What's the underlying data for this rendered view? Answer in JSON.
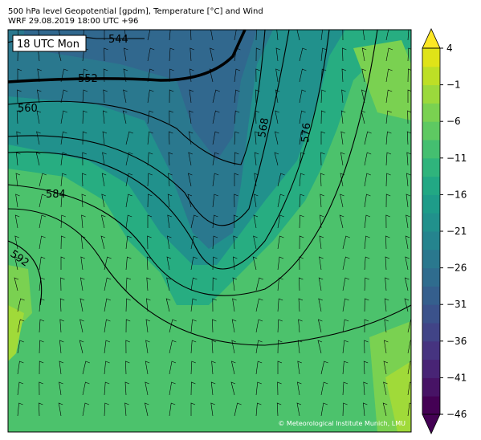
{
  "header": {
    "title": "500 hPa level Geopotential [gpdm], Temperature [°C] and Wind",
    "subtitle": "WRF 29.08.2019 18:00 UTC +96"
  },
  "map": {
    "time_label": "18 UTC Mon",
    "credit": "© Meteorological Institute Munich, LMU",
    "contour_labels": [
      "544",
      "552",
      "560",
      "568",
      "576",
      "584",
      "592"
    ]
  },
  "colorbar": {
    "range": [
      -46,
      4
    ],
    "ticks": [
      4,
      {
        "value": -1,
        "label": "−1"
      },
      {
        "value": -6,
        "label": "−6"
      },
      {
        "value": -11,
        "label": "−11"
      },
      {
        "value": -16,
        "label": "−16"
      },
      {
        "value": -21,
        "label": "−21"
      },
      {
        "value": -26,
        "label": "−26"
      },
      {
        "value": -31,
        "label": "−31"
      },
      {
        "value": -36,
        "label": "−36"
      },
      {
        "value": -41,
        "label": "−41"
      },
      {
        "value": -46,
        "label": "−46"
      }
    ]
  }
}
